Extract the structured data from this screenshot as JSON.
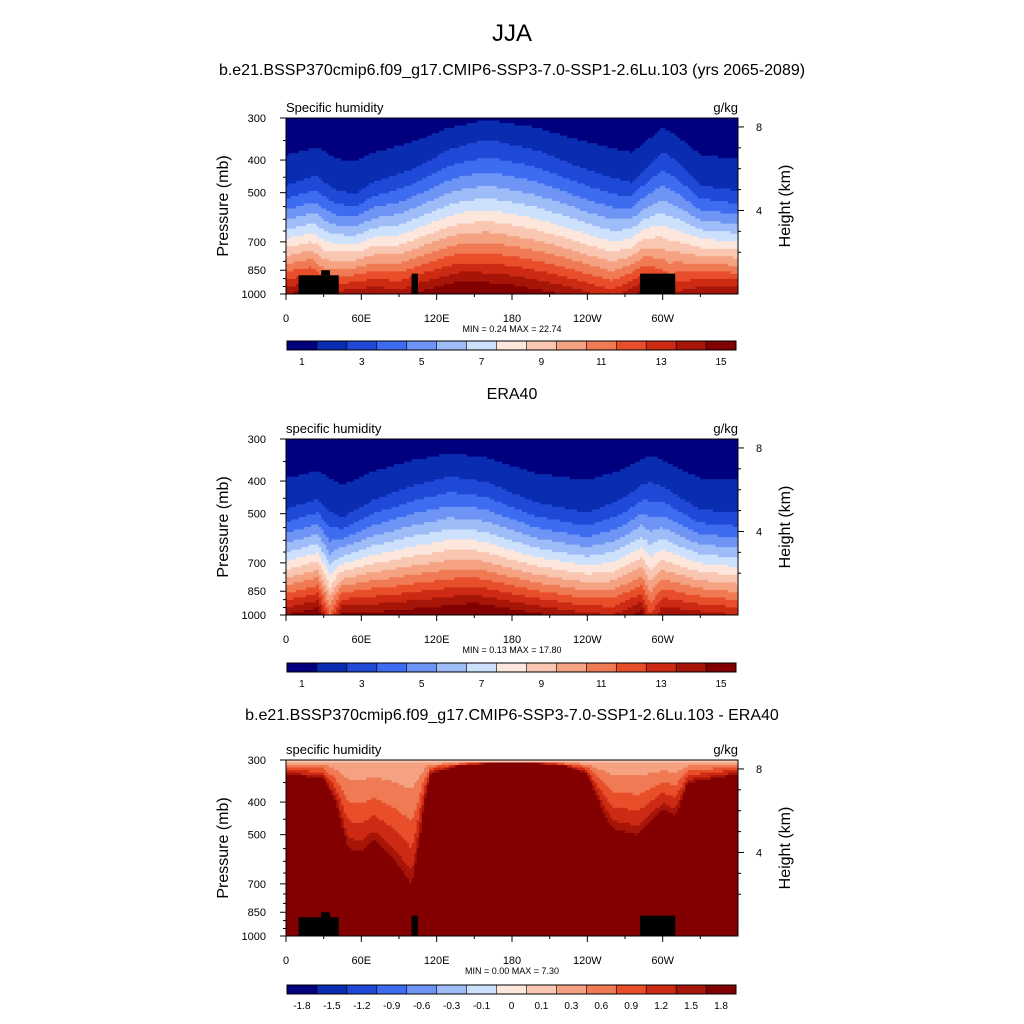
{
  "page": {
    "title": "JJA",
    "top_subtitle": "b.e21.BSSP370cmip6.f09_g17.CMIP6-SSP3-7.0-SSP1-2.6Lu.103 (yrs 2065-2089)",
    "panel2_title": "ERA40",
    "panel3_title": "b.e21.BSSP370cmip6.f09_g17.CMIP6-SSP3-7.0-SSP1-2.6Lu.103 - ERA40"
  },
  "colors": {
    "colormap": [
      "#00007f",
      "#0a2cb0",
      "#1f49d6",
      "#3e6cf0",
      "#6e95f5",
      "#9ebcf8",
      "#cde0fc",
      "#fde7dc",
      "#f9c7b1",
      "#f5a283",
      "#ef7a54",
      "#e84e2a",
      "#cc2a12",
      "#a71509",
      "#820000"
    ],
    "land_mask": "#000000"
  },
  "chart_data": [
    {
      "type": "heatmap",
      "name": "model",
      "left_label": "Specific humidity",
      "units": "g/kg",
      "xlabel": "",
      "ylabel": "Pressure (mb)",
      "right_label": "Height (km)",
      "x_ticks": [
        "0",
        "60E",
        "120E",
        "180",
        "120W",
        "60W"
      ],
      "y_ticks": [
        "300",
        "400",
        "500",
        "700",
        "850",
        "1000"
      ],
      "right_ticks": [
        "8",
        "4"
      ],
      "stats": "MIN =   0.24  MAX =  22.74",
      "colorbar_labels": [
        "1",
        "3",
        "5",
        "7",
        "9",
        "11",
        "13",
        "15"
      ],
      "xlim": [
        0,
        360
      ],
      "ylim": [
        1000,
        300
      ],
      "levels": [
        1,
        2,
        3,
        4,
        5,
        6,
        7,
        8,
        9,
        10,
        11,
        12,
        13,
        14
      ],
      "field": {
        "surface": [
          [
            0,
            14
          ],
          [
            20,
            14.5
          ],
          [
            30,
            13
          ],
          [
            45,
            13.5
          ],
          [
            70,
            14
          ],
          [
            90,
            13.5
          ],
          [
            110,
            14.5
          ],
          [
            140,
            15.5
          ],
          [
            180,
            15
          ],
          [
            220,
            14
          ],
          [
            260,
            12.5
          ],
          [
            285,
            14.5
          ],
          [
            305,
            13
          ],
          [
            330,
            14
          ],
          [
            360,
            14
          ]
        ],
        "ridge_p": [
          [
            0,
            430
          ],
          [
            25,
            400
          ],
          [
            40,
            445
          ],
          [
            55,
            460
          ],
          [
            70,
            420
          ],
          [
            100,
            380
          ],
          [
            130,
            330
          ],
          [
            160,
            305
          ],
          [
            200,
            330
          ],
          [
            240,
            380
          ],
          [
            275,
            420
          ],
          [
            300,
            330
          ],
          [
            310,
            350
          ],
          [
            330,
            430
          ],
          [
            360,
            450
          ]
        ]
      },
      "land_mask": [
        [
          10,
          880,
          42,
          1000
        ],
        [
          28,
          850,
          35,
          880
        ],
        [
          100,
          870,
          105,
          1000
        ],
        [
          282,
          870,
          310,
          1000
        ]
      ]
    },
    {
      "type": "heatmap",
      "name": "era40",
      "left_label": "specific humidity",
      "units": "g/kg",
      "xlabel": "",
      "ylabel": "Pressure (mb)",
      "right_label": "Height (km)",
      "x_ticks": [
        "0",
        "60E",
        "120E",
        "180",
        "120W",
        "60W"
      ],
      "y_ticks": [
        "300",
        "400",
        "500",
        "700",
        "850",
        "1000"
      ],
      "right_ticks": [
        "8",
        "4"
      ],
      "stats": "MIN =   0.13  MAX =  17.80",
      "colorbar_labels": [
        "1",
        "3",
        "5",
        "7",
        "9",
        "11",
        "13",
        "15"
      ],
      "xlim": [
        0,
        360
      ],
      "ylim": [
        1000,
        300
      ],
      "levels": [
        1,
        2,
        3,
        4,
        5,
        6,
        7,
        8,
        9,
        10,
        11,
        12,
        13,
        14
      ],
      "field": {
        "surface": [
          [
            0,
            14
          ],
          [
            25,
            15
          ],
          [
            35,
            11
          ],
          [
            45,
            14.5
          ],
          [
            80,
            14.5
          ],
          [
            120,
            15
          ],
          [
            150,
            15.5
          ],
          [
            190,
            14.5
          ],
          [
            230,
            13.5
          ],
          [
            260,
            13
          ],
          [
            283,
            14.5
          ],
          [
            290,
            12
          ],
          [
            300,
            14
          ],
          [
            330,
            13.5
          ],
          [
            360,
            13
          ]
        ],
        "ridge_p": [
          [
            0,
            440
          ],
          [
            25,
            410
          ],
          [
            45,
            470
          ],
          [
            70,
            410
          ],
          [
            100,
            370
          ],
          [
            130,
            345
          ],
          [
            160,
            360
          ],
          [
            200,
            420
          ],
          [
            240,
            450
          ],
          [
            270,
            400
          ],
          [
            290,
            350
          ],
          [
            305,
            380
          ],
          [
            330,
            440
          ],
          [
            360,
            450
          ]
        ]
      },
      "land_mask": []
    },
    {
      "type": "heatmap",
      "name": "difference",
      "left_label": "specific humidity",
      "units": "g/kg",
      "xlabel": "",
      "ylabel": "Pressure (mb)",
      "right_label": "Height (km)",
      "x_ticks": [
        "0",
        "60E",
        "120E",
        "180",
        "120W",
        "60W"
      ],
      "y_ticks": [
        "300",
        "400",
        "500",
        "700",
        "850",
        "1000"
      ],
      "right_ticks": [
        "8",
        "4"
      ],
      "stats": "MIN =   0.00  MAX =   7.30",
      "colorbar_labels": [
        "-1.8",
        "-1.5",
        "-1.2",
        "-0.9",
        "-0.6",
        "-0.3",
        "-0.1",
        "0",
        "0.1",
        "0.3",
        "0.6",
        "0.9",
        "1.2",
        "1.5",
        "1.8"
      ],
      "xlim": [
        0,
        360
      ],
      "ylim": [
        1000,
        300
      ],
      "levels": [
        -1.8,
        -1.5,
        -1.2,
        -0.9,
        -0.6,
        -0.3,
        -0.1,
        0,
        0.1,
        0.3,
        0.6,
        0.9,
        1.2,
        1.5,
        1.8
      ],
      "field": {
        "top_p": [
          [
            0,
            330
          ],
          [
            30,
            340
          ],
          [
            40,
            400
          ],
          [
            50,
            550
          ],
          [
            60,
            560
          ],
          [
            70,
            520
          ],
          [
            80,
            560
          ],
          [
            90,
            620
          ],
          [
            100,
            700
          ],
          [
            110,
            400
          ],
          [
            115,
            330
          ],
          [
            140,
            310
          ],
          [
            180,
            305
          ],
          [
            220,
            310
          ],
          [
            240,
            330
          ],
          [
            260,
            480
          ],
          [
            280,
            500
          ],
          [
            300,
            420
          ],
          [
            310,
            440
          ],
          [
            320,
            350
          ],
          [
            360,
            330
          ]
        ]
      },
      "land_mask": [
        [
          10,
          880,
          42,
          1000
        ],
        [
          28,
          850,
          35,
          880
        ],
        [
          100,
          870,
          105,
          1000
        ],
        [
          282,
          870,
          310,
          1000
        ]
      ]
    }
  ]
}
